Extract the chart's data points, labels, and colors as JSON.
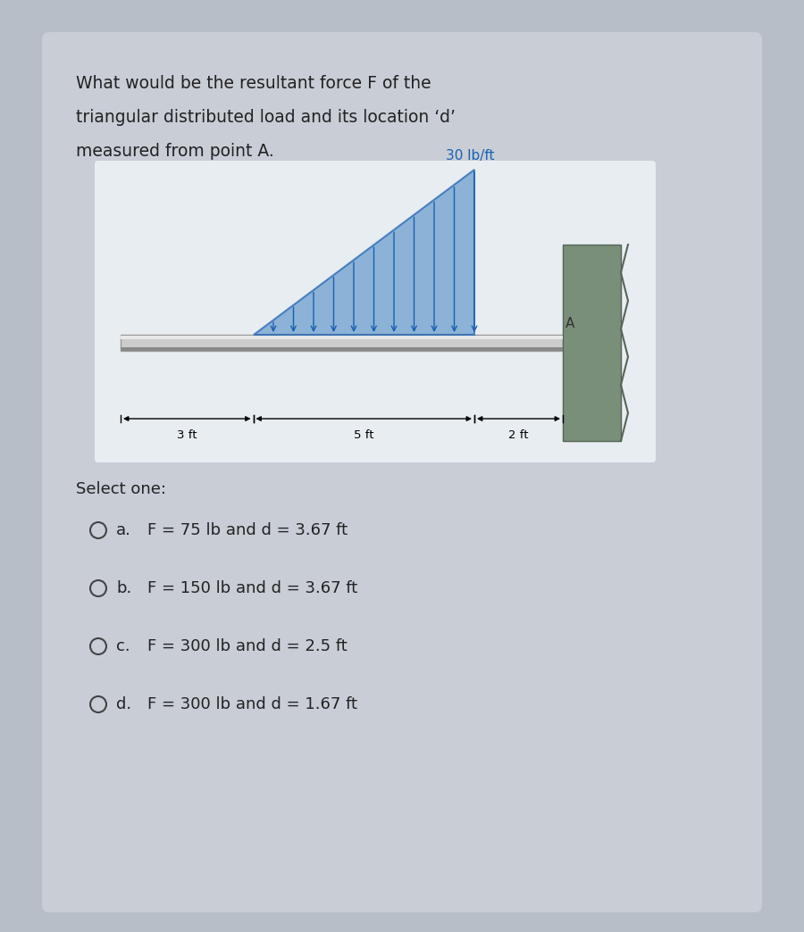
{
  "bg_color": "#b8bec8",
  "card_color": "#c8cdd6",
  "diagram_bg": "#e8edf2",
  "question_text_line1": "What would be the resultant force F of the",
  "question_text_line2": "triangular distributed load and its location ‘d’",
  "question_text_line3": "measured from point A.",
  "load_label": "30 lb/ft",
  "load_label_color": "#1a5fb0",
  "beam_color_top": "#d0d0d0",
  "beam_color_bot": "#888888",
  "triangle_fill": "#6699cc",
  "triangle_edge": "#1a5fb0",
  "arrow_color": "#1a5fb0",
  "wall_fill": "#7a8f7a",
  "wall_edge": "#556655",
  "dim_label_3ft": "3 ft",
  "dim_label_5ft": "5 ft",
  "dim_label_2ft": "2 ft",
  "point_A_label": "A",
  "select_text": "Select one:",
  "options": [
    "F = 75 lb and d = 3.67 ft",
    "F = 150 lb and d = 3.67 ft",
    "F = 300 lb and d = 2.5 ft",
    "F = 300 lb and d = 1.67 ft"
  ],
  "option_letters": [
    "a.",
    "b.",
    "c.",
    "d."
  ],
  "font_size_question": 13.5,
  "font_size_options": 13,
  "font_size_dim": 9.5,
  "font_size_load_label": 10
}
